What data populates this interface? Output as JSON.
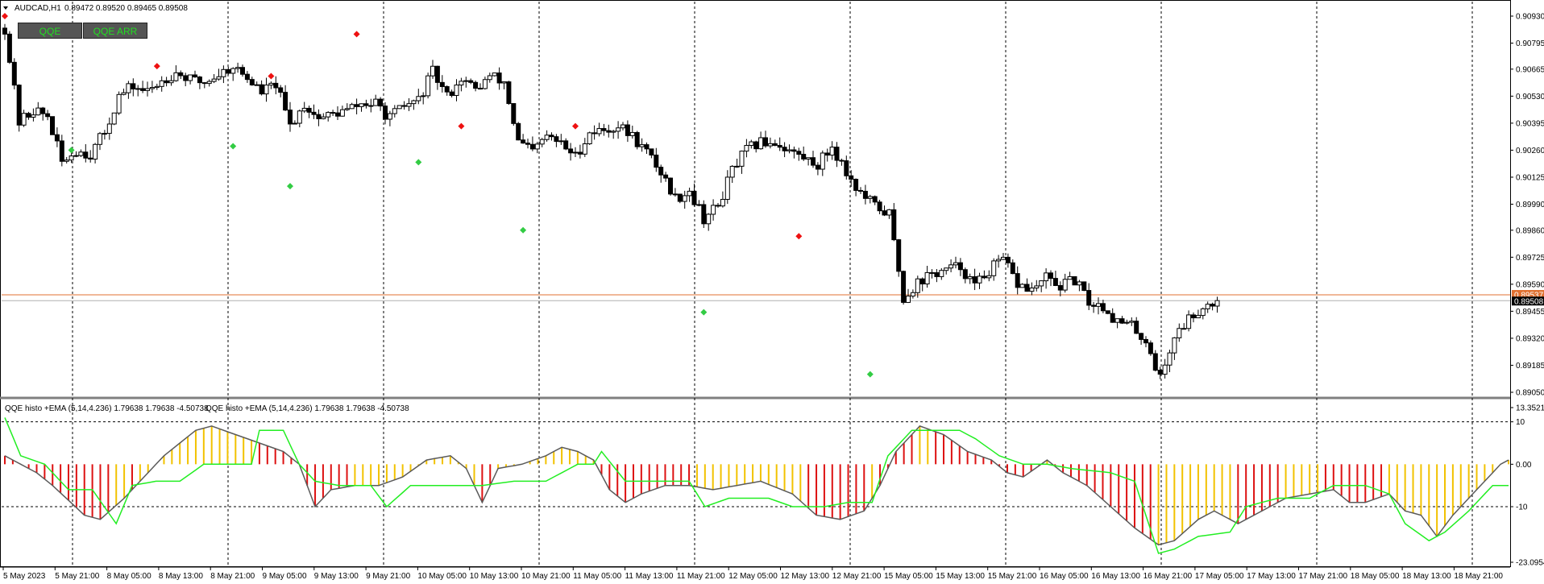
{
  "symbol_title": "AUDCAD,H1",
  "ohlc": "0.89472 0.89520 0.89465 0.89508",
  "indicator_label": "QQE histo +EMA (5,14,4.236) 1.79638 1.79638 -4.50738",
  "buttons": {
    "qqe": "QQE",
    "qqe_arr": "QQE ARR"
  },
  "colors": {
    "background": "#ffffff",
    "up_candle": "#ffffff",
    "down_candle": "#000000",
    "buy_marker": "#33cc44",
    "sell_marker": "#ee1111",
    "hist_positive": "#f2c200",
    "hist_negative": "#dd1111",
    "qqe_fast": "#5a5a5a",
    "qqe_slow": "#22ee22",
    "price_line": "#e07030",
    "price_label_bg": "#000000"
  },
  "chart_data": [
    {
      "type": "candlestick",
      "title": "AUDCAD,H1",
      "price_ticks": [
        "0.90930",
        "0.90795",
        "0.90665",
        "0.90530",
        "0.90395",
        "0.90260",
        "0.90125",
        "0.89990",
        "0.89860",
        "0.89725",
        "0.89590",
        "0.89455",
        "0.89320",
        "0.89185",
        "0.89050"
      ],
      "current_price": "0.89508",
      "ask_price": "0.89537",
      "ylim": [
        0.8905,
        0.9093
      ],
      "x_labels": [
        "5 May 2023",
        "5 May 21:00",
        "8 May 05:00",
        "8 May 13:00",
        "8 May 21:00",
        "9 May 05:00",
        "9 May 13:00",
        "9 May 21:00",
        "10 May 05:00",
        "10 May 13:00",
        "10 May 21:00",
        "11 May 05:00",
        "11 May 13:00",
        "11 May 21:00",
        "12 May 05:00",
        "12 May 13:00",
        "12 May 21:00",
        "15 May 05:00",
        "15 May 13:00",
        "15 May 21:00",
        "16 May 05:00",
        "16 May 13:00",
        "16 May 21:00",
        "17 May 05:00",
        "17 May 13:00",
        "17 May 21:00",
        "18 May 05:00",
        "18 May 13:00",
        "18 May 21:00"
      ],
      "close_path": [
        [
          0,
          0.9087
        ],
        [
          3,
          0.904
        ],
        [
          6,
          0.9046
        ],
        [
          9,
          0.9043
        ],
        [
          12,
          0.902
        ],
        [
          15,
          0.9026
        ],
        [
          18,
          0.9024
        ],
        [
          21,
          0.9035
        ],
        [
          24,
          0.9053
        ],
        [
          27,
          0.9058
        ],
        [
          30,
          0.9055
        ],
        [
          33,
          0.9061
        ],
        [
          36,
          0.9065
        ],
        [
          39,
          0.9061
        ],
        [
          42,
          0.906
        ],
        [
          45,
          0.9064
        ],
        [
          48,
          0.9068
        ],
        [
          51,
          0.9062
        ],
        [
          54,
          0.9055
        ],
        [
          57,
          0.9059
        ],
        [
          60,
          0.9038
        ],
        [
          63,
          0.9049
        ],
        [
          66,
          0.9042
        ],
        [
          69,
          0.9044
        ],
        [
          72,
          0.9046
        ],
        [
          75,
          0.9049
        ],
        [
          78,
          0.9049
        ],
        [
          81,
          0.9042
        ],
        [
          84,
          0.9048
        ],
        [
          87,
          0.9051
        ],
        [
          90,
          0.9065
        ],
        [
          93,
          0.9053
        ],
        [
          96,
          0.9062
        ],
        [
          99,
          0.9056
        ],
        [
          102,
          0.9063
        ],
        [
          105,
          0.906
        ],
        [
          108,
          0.903
        ],
        [
          111,
          0.9025
        ],
        [
          114,
          0.9033
        ],
        [
          117,
          0.9029
        ],
        [
          120,
          0.9023
        ],
        [
          123,
          0.9035
        ],
        [
          126,
          0.9036
        ],
        [
          129,
          0.9038
        ],
        [
          132,
          0.9033
        ],
        [
          135,
          0.9025
        ],
        [
          138,
          0.9015
        ],
        [
          141,
          0.9002
        ],
        [
          144,
          0.9006
        ],
        [
          147,
          0.8992
        ],
        [
          150,
          0.8998
        ],
        [
          153,
          0.9016
        ],
        [
          156,
          0.9026
        ],
        [
          159,
          0.903
        ],
        [
          162,
          0.903
        ],
        [
          165,
          0.9026
        ],
        [
          168,
          0.9022
        ],
        [
          171,
          0.9019
        ],
        [
          174,
          0.9028
        ],
        [
          177,
          0.9015
        ],
        [
          180,
          0.9004
        ],
        [
          183,
          0.8998
        ],
        [
          186,
          0.8994
        ],
        [
          189,
          0.8952
        ],
        [
          192,
          0.896
        ],
        [
          195,
          0.8964
        ],
        [
          198,
          0.8966
        ],
        [
          201,
          0.8968
        ],
        [
          204,
          0.8958
        ],
        [
          207,
          0.8966
        ],
        [
          210,
          0.8971
        ],
        [
          213,
          0.8959
        ],
        [
          216,
          0.8956
        ],
        [
          219,
          0.8962
        ],
        [
          222,
          0.8958
        ],
        [
          225,
          0.8961
        ],
        [
          228,
          0.895
        ],
        [
          231,
          0.8948
        ],
        [
          234,
          0.894
        ],
        [
          237,
          0.8938
        ],
        [
          240,
          0.8931
        ],
        [
          243,
          0.8912
        ],
        [
          246,
          0.8933
        ],
        [
          249,
          0.8942
        ],
        [
          252,
          0.8948
        ],
        [
          255,
          0.8951
        ]
      ],
      "candle_count": 256,
      "sell_arrows": [
        [
          0,
          0.9093
        ],
        [
          32,
          0.9068
        ],
        [
          56,
          0.9063
        ],
        [
          74,
          0.9084
        ],
        [
          96,
          0.9038
        ],
        [
          120,
          0.9038
        ],
        [
          167,
          0.8983
        ]
      ],
      "buy_arrows": [
        [
          14,
          0.9026
        ],
        [
          48,
          0.9028
        ],
        [
          60,
          0.9008
        ],
        [
          87,
          0.902
        ],
        [
          109,
          0.8986
        ],
        [
          147,
          0.8945
        ],
        [
          182,
          0.8914
        ]
      ]
    },
    {
      "type": "histogram+line",
      "title": "QQE histo +EMA (5,14,4.236)",
      "y_ticks": [
        "13.3521",
        "10",
        "0.00",
        "-10",
        "-23.0954"
      ],
      "ylim": [
        -23.0954,
        13.3521
      ],
      "histogram_path": [
        [
          0,
          2
        ],
        [
          4,
          -2
        ],
        [
          6,
          -5
        ],
        [
          10,
          -12
        ],
        [
          12,
          -13
        ],
        [
          15,
          -8
        ],
        [
          18,
          -2
        ],
        [
          20,
          2
        ],
        [
          24,
          8
        ],
        [
          26,
          9
        ],
        [
          29,
          7
        ],
        [
          32,
          5
        ],
        [
          35,
          3
        ],
        [
          37,
          0
        ],
        [
          39,
          -10
        ],
        [
          41,
          -6
        ],
        [
          44,
          -5
        ],
        [
          47,
          -5
        ],
        [
          50,
          -3
        ],
        [
          53,
          1
        ],
        [
          56,
          2
        ],
        [
          58,
          -1
        ],
        [
          60,
          -9
        ],
        [
          62,
          -1
        ],
        [
          65,
          0
        ],
        [
          68,
          2
        ],
        [
          70,
          4
        ],
        [
          72,
          3
        ],
        [
          74,
          1
        ],
        [
          76,
          -6
        ],
        [
          78,
          -9
        ],
        [
          80,
          -7
        ],
        [
          83,
          -5
        ],
        [
          86,
          -5
        ],
        [
          89,
          -6
        ],
        [
          92,
          -5
        ],
        [
          95,
          -4
        ],
        [
          99,
          -7
        ],
        [
          102,
          -12
        ],
        [
          105,
          -13
        ],
        [
          108,
          -11
        ],
        [
          110,
          -5
        ],
        [
          112,
          3
        ],
        [
          115,
          9
        ],
        [
          118,
          7
        ],
        [
          121,
          3
        ],
        [
          124,
          1
        ],
        [
          126,
          -2
        ],
        [
          128,
          -3
        ],
        [
          131,
          1
        ],
        [
          133,
          -2
        ],
        [
          136,
          -5
        ],
        [
          139,
          -10
        ],
        [
          142,
          -15
        ],
        [
          145,
          -19
        ],
        [
          147,
          -18
        ],
        [
          150,
          -13
        ],
        [
          152,
          -11
        ],
        [
          155,
          -14
        ],
        [
          158,
          -11
        ],
        [
          161,
          -8
        ],
        [
          164,
          -7
        ],
        [
          167,
          -6
        ],
        [
          169,
          -9
        ],
        [
          171,
          -9
        ],
        [
          174,
          -7
        ],
        [
          176,
          -11
        ],
        [
          178,
          -12
        ],
        [
          180,
          -17
        ],
        [
          182,
          -12
        ],
        [
          185,
          -6
        ],
        [
          188,
          0
        ],
        [
          189,
          1
        ]
      ],
      "signal_path": [
        [
          0,
          11
        ],
        [
          2,
          2
        ],
        [
          5,
          0
        ],
        [
          8,
          -6
        ],
        [
          11,
          -6
        ],
        [
          14,
          -14
        ],
        [
          16,
          -5
        ],
        [
          19,
          -4
        ],
        [
          22,
          -4
        ],
        [
          25,
          0
        ],
        [
          28,
          0
        ],
        [
          31,
          0
        ],
        [
          32,
          8
        ],
        [
          35,
          8
        ],
        [
          37,
          0
        ],
        [
          39,
          -4
        ],
        [
          42,
          -5
        ],
        [
          46,
          -5
        ],
        [
          48,
          -10
        ],
        [
          51,
          -5
        ],
        [
          55,
          -5
        ],
        [
          60,
          -5
        ],
        [
          64,
          -4
        ],
        [
          68,
          -4
        ],
        [
          72,
          0
        ],
        [
          74,
          0
        ],
        [
          75,
          3
        ],
        [
          78,
          -4
        ],
        [
          83,
          -4
        ],
        [
          86,
          -4
        ],
        [
          88,
          -10
        ],
        [
          91,
          -8
        ],
        [
          96,
          -8
        ],
        [
          99,
          -10
        ],
        [
          103,
          -10
        ],
        [
          106,
          -9
        ],
        [
          109,
          -9
        ],
        [
          111,
          2
        ],
        [
          114,
          8
        ],
        [
          118,
          8
        ],
        [
          120,
          8
        ],
        [
          122,
          6
        ],
        [
          125,
          2
        ],
        [
          128,
          0
        ],
        [
          131,
          0
        ],
        [
          134,
          -1
        ],
        [
          139,
          -2
        ],
        [
          142,
          -4
        ],
        [
          145,
          -21
        ],
        [
          147,
          -20
        ],
        [
          150,
          -17
        ],
        [
          154,
          -16
        ],
        [
          156,
          -10
        ],
        [
          160,
          -8
        ],
        [
          164,
          -8
        ],
        [
          167,
          -5
        ],
        [
          171,
          -5
        ],
        [
          174,
          -7
        ],
        [
          176,
          -14
        ],
        [
          179,
          -18
        ],
        [
          181,
          -16
        ],
        [
          184,
          -11
        ],
        [
          187,
          -5
        ]
      ]
    }
  ]
}
